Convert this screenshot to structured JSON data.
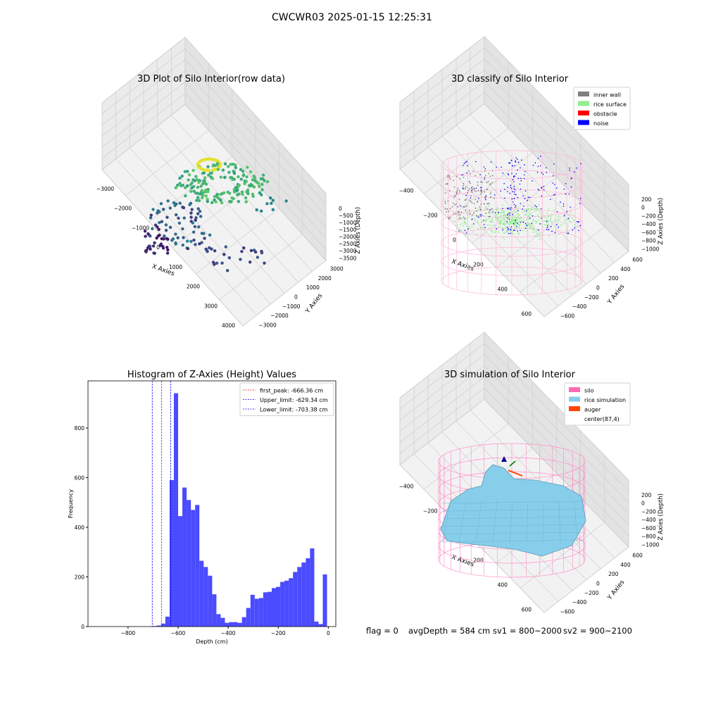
{
  "suptitle": "CWCWR03 2025-01-15 12:25:31",
  "footer": {
    "flag": "flag = 0",
    "avg": "avgDepth = 584 cm",
    "sv1": "sv1 = 800~2000",
    "sv2": "sv2 = 900~2100"
  },
  "colors": {
    "inner_wall": "#808080",
    "rice_surface": "#90ee90",
    "obstacle": "#ff0000",
    "noise": "#0000ff",
    "silo": "#ff69b4",
    "rice_simulation": "#87ceeb",
    "auger": "#ff4500",
    "histogram_bar": "#4b4bff",
    "peak_line": "#ff0000",
    "limit_line": "#0000ff"
  },
  "chart_data": [
    {
      "type": "scatter",
      "title": "3D Plot of Silo Interior(row data)",
      "xlabel": "X Axies",
      "ylabel": "Y Axies",
      "zlabel": "Z Axies (Depth)",
      "xticks": [
        "−3000",
        "−2000",
        "−1000",
        "0",
        "1000",
        "2000",
        "3000",
        "4000"
      ],
      "yticks": [
        "3000",
        "2000",
        "1000",
        "0",
        "−1000",
        "−2000",
        "−3000"
      ],
      "zticks": [
        "0",
        "−500",
        "−1000",
        "−1500",
        "−2000",
        "−2500",
        "−3000",
        "−3500"
      ],
      "colormap": "viridis"
    },
    {
      "type": "scatter",
      "title": "3D classify of Silo Interior",
      "xlabel": "X Axies",
      "ylabel": "Y Axies",
      "zlabel": "Z Axies (Depth)",
      "xticks": [
        "−400",
        "−200",
        "0",
        "200",
        "400",
        "600"
      ],
      "yticks": [
        "600",
        "400",
        "200",
        "0",
        "−200",
        "−400",
        "−600"
      ],
      "zticks": [
        "200",
        "0",
        "−200",
        "−400",
        "−600",
        "−800",
        "−1000"
      ],
      "legend": [
        "inner wall",
        "rice surface",
        "obstacle",
        "noise"
      ],
      "legend_loc": "upper right"
    },
    {
      "type": "bar",
      "title": "Histogram of Z-Axies (Height) Values",
      "xlabel": "Depth (cm)",
      "ylabel": "Frequency",
      "xlim": [
        -960,
        30
      ],
      "ylim": [
        0,
        990
      ],
      "xticks": [
        -800,
        -600,
        -400,
        -200,
        0
      ],
      "xtick_labels": [
        "−800",
        "−600",
        "−400",
        "−200",
        "0"
      ],
      "yticks": [
        0,
        200,
        400,
        600,
        800
      ],
      "bin_start": -940,
      "bin_width": 17,
      "values": [
        0,
        0,
        0,
        0,
        0,
        0,
        0,
        0,
        0,
        0,
        0,
        0,
        0,
        0,
        2,
        4,
        12,
        40,
        590,
        940,
        445,
        560,
        510,
        470,
        490,
        265,
        240,
        205,
        130,
        50,
        35,
        15,
        18,
        18,
        15,
        38,
        75,
        128,
        112,
        115,
        138,
        140,
        155,
        160,
        180,
        185,
        195,
        220,
        240,
        258,
        275,
        315,
        20,
        10,
        210
      ],
      "first_peak": -666.36,
      "upper_limit": -629.34,
      "lower_limit": -703.38,
      "legend": [
        "first_peak: -666.36 cm",
        "Upper_limit: -629.34 cm",
        "Lower_limit: -703.38 cm"
      ],
      "legend_loc": "upper right"
    },
    {
      "type": "area",
      "title": "3D simulation of Silo Interior",
      "xlabel": "X Axies",
      "ylabel": "Y Axies",
      "zlabel": "Z Axies (Depth)",
      "xticks": [
        "−400",
        "−200",
        "0",
        "200",
        "400",
        "600"
      ],
      "yticks": [
        "600",
        "400",
        "200",
        "0",
        "−200",
        "−400",
        "−600"
      ],
      "zticks": [
        "200",
        "0",
        "−200",
        "−400",
        "−600",
        "−800",
        "−1000"
      ],
      "legend": [
        "silo",
        "rice simulation",
        "auger",
        "center(87,4)"
      ],
      "legend_loc": "upper right"
    }
  ]
}
